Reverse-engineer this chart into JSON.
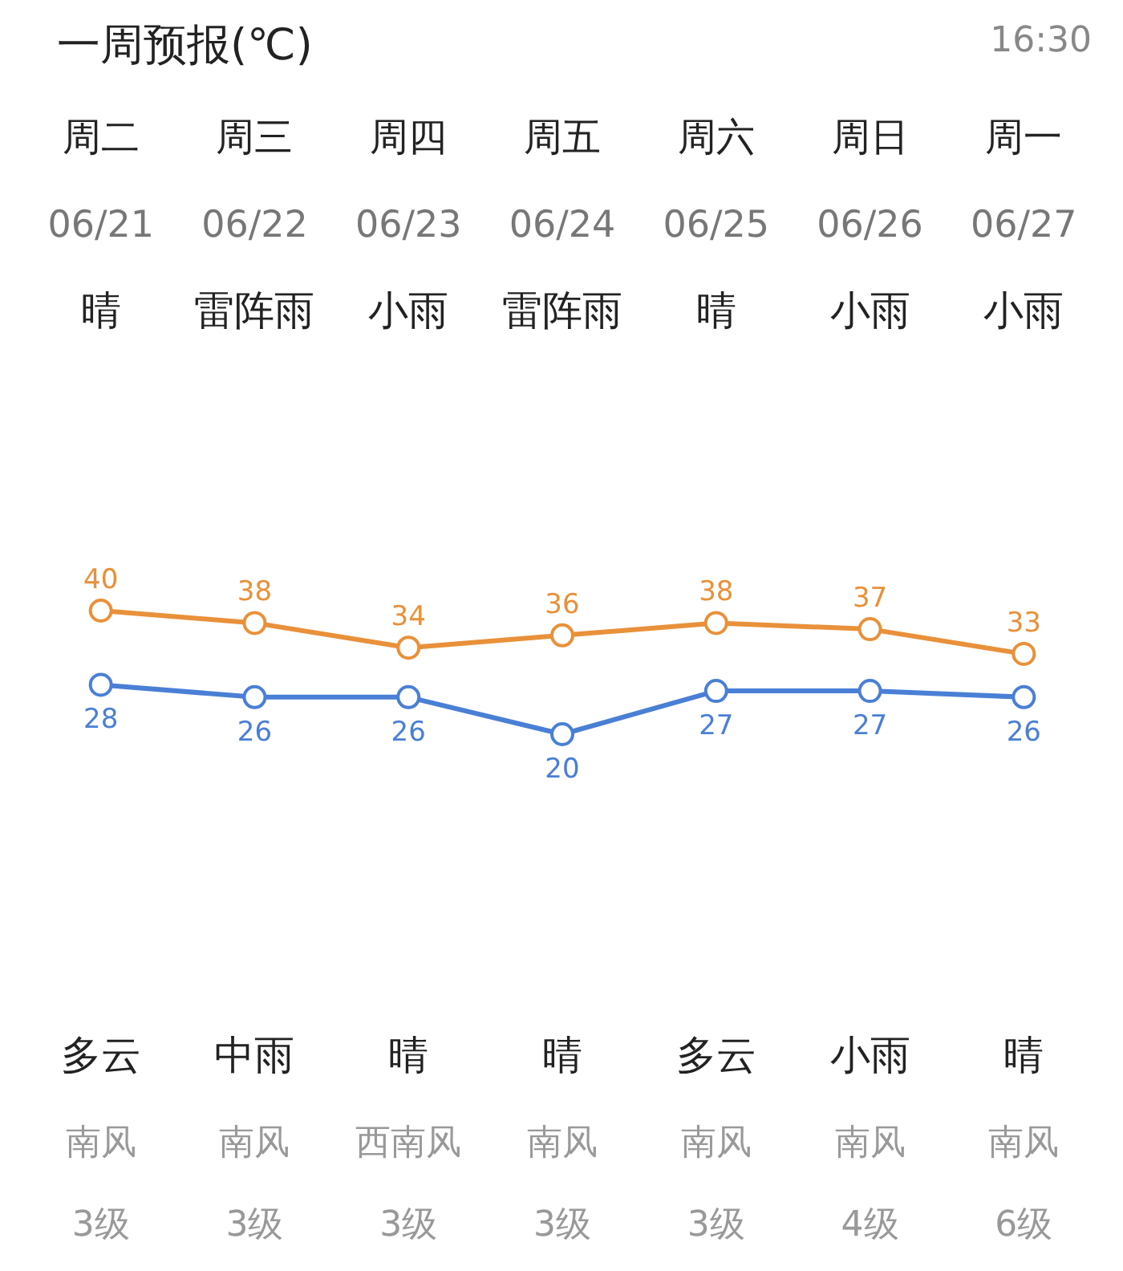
{
  "chart_data": {
    "type": "line",
    "title": "一周预报(℃)",
    "categories": [
      "周二",
      "周三",
      "周四",
      "周五",
      "周六",
      "周日",
      "周一"
    ],
    "series": [
      {
        "color": "#e8913a",
        "values": [
          40,
          38,
          34,
          36,
          38,
          37,
          33
        ]
      },
      {
        "color": "#4a7fd6",
        "values": [
          28,
          26,
          26,
          20,
          27,
          27,
          26
        ]
      }
    ],
    "data_labels": true,
    "marker": "circle",
    "grid": false,
    "tick_labels": false,
    "annotations": [
      "06/21",
      "06/22",
      "06/23",
      "06/24",
      "06/25",
      "06/26",
      "06/27",
      "晴",
      "雷阵雨",
      "小雨",
      "雷阵雨",
      "晴",
      "小雨",
      "小雨",
      "多云",
      "中雨",
      "晴",
      "晴",
      "多云",
      "小雨",
      "晴",
      "南风",
      "南风",
      "西南风",
      "南风",
      "南风",
      "南风",
      "南风",
      "3级",
      "3级",
      "3级",
      "3级",
      "3级",
      "4级",
      "6级",
      "16:30"
    ]
  }
}
